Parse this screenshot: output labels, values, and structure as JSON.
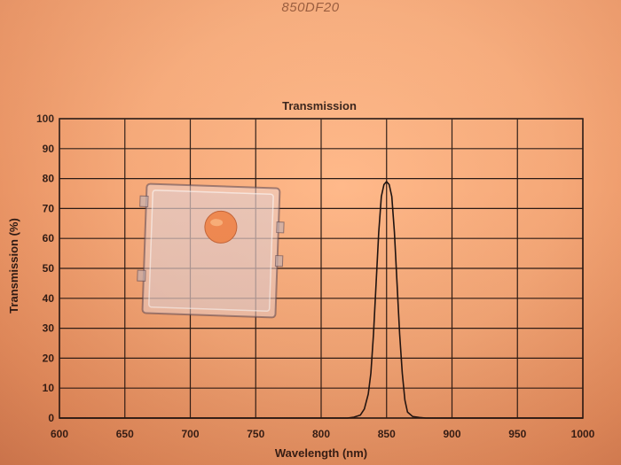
{
  "document": {
    "title": "850DF20"
  },
  "filter_case": {
    "description_icon": "clear-plastic-case-with-orange-filter"
  },
  "chart_data": {
    "type": "line",
    "title": "Transmission",
    "xlabel": "Wavelength (nm)",
    "ylabel": "Transmission (%)",
    "xlim": [
      600,
      1000
    ],
    "ylim": [
      0,
      100
    ],
    "xticks": [
      600,
      650,
      700,
      750,
      800,
      850,
      900,
      950,
      1000
    ],
    "yticks": [
      0,
      10,
      20,
      30,
      40,
      50,
      60,
      70,
      80,
      90,
      100
    ],
    "grid": true,
    "series": [
      {
        "x": [
          600,
          820,
          825,
          830,
          833,
          836,
          838,
          840,
          842,
          844,
          846,
          848,
          850,
          852,
          854,
          856,
          858,
          860,
          862,
          864,
          866,
          870,
          875,
          880,
          1000
        ],
        "y": [
          0,
          0,
          0.3,
          1,
          3,
          8,
          15,
          28,
          45,
          62,
          74,
          78,
          79,
          78,
          74,
          62,
          45,
          28,
          15,
          6,
          2,
          0.5,
          0.2,
          0,
          0
        ]
      }
    ],
    "colors": {
      "line": "#1c1210",
      "grid": "#2a1a14"
    }
  }
}
